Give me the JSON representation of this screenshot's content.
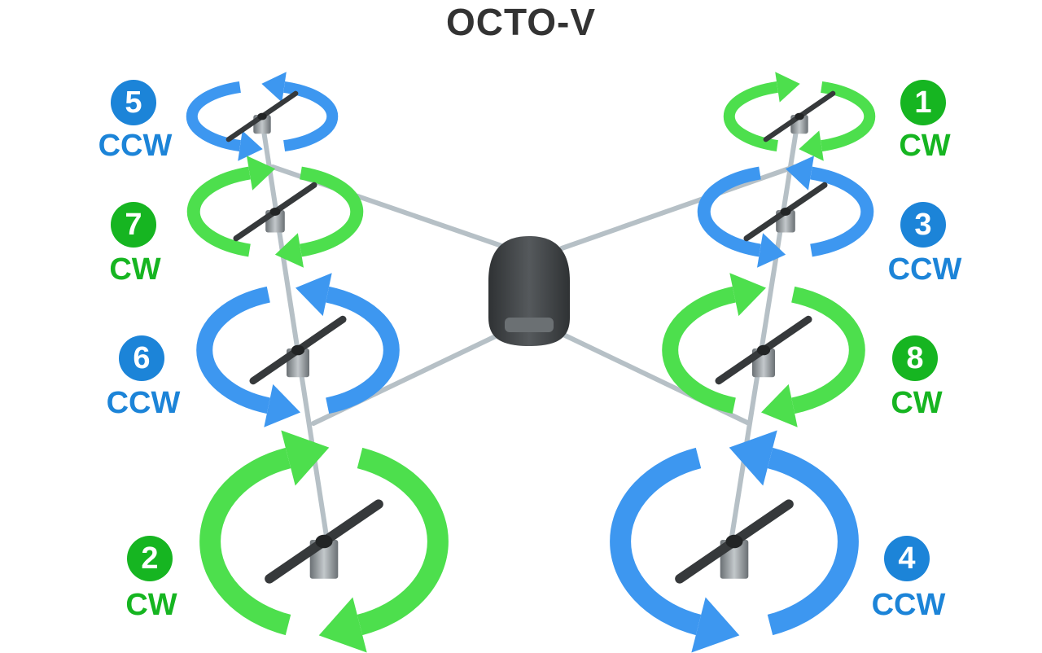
{
  "title": "OCTO-V",
  "colors": {
    "cw": "#16b521",
    "ccw": "#1c84d8",
    "cw_arrow": "#4ddf4d",
    "ccw_arrow": "#3d97f0",
    "frame": "#b6c0c6",
    "body": "#474b4d",
    "prop": "#36393b",
    "title": "#333333"
  },
  "motors": [
    {
      "number": "1",
      "direction": "CW"
    },
    {
      "number": "2",
      "direction": "CW"
    },
    {
      "number": "3",
      "direction": "CCW"
    },
    {
      "number": "4",
      "direction": "CCW"
    },
    {
      "number": "5",
      "direction": "CCW"
    },
    {
      "number": "6",
      "direction": "CCW"
    },
    {
      "number": "7",
      "direction": "CW"
    },
    {
      "number": "8",
      "direction": "CW"
    }
  ]
}
